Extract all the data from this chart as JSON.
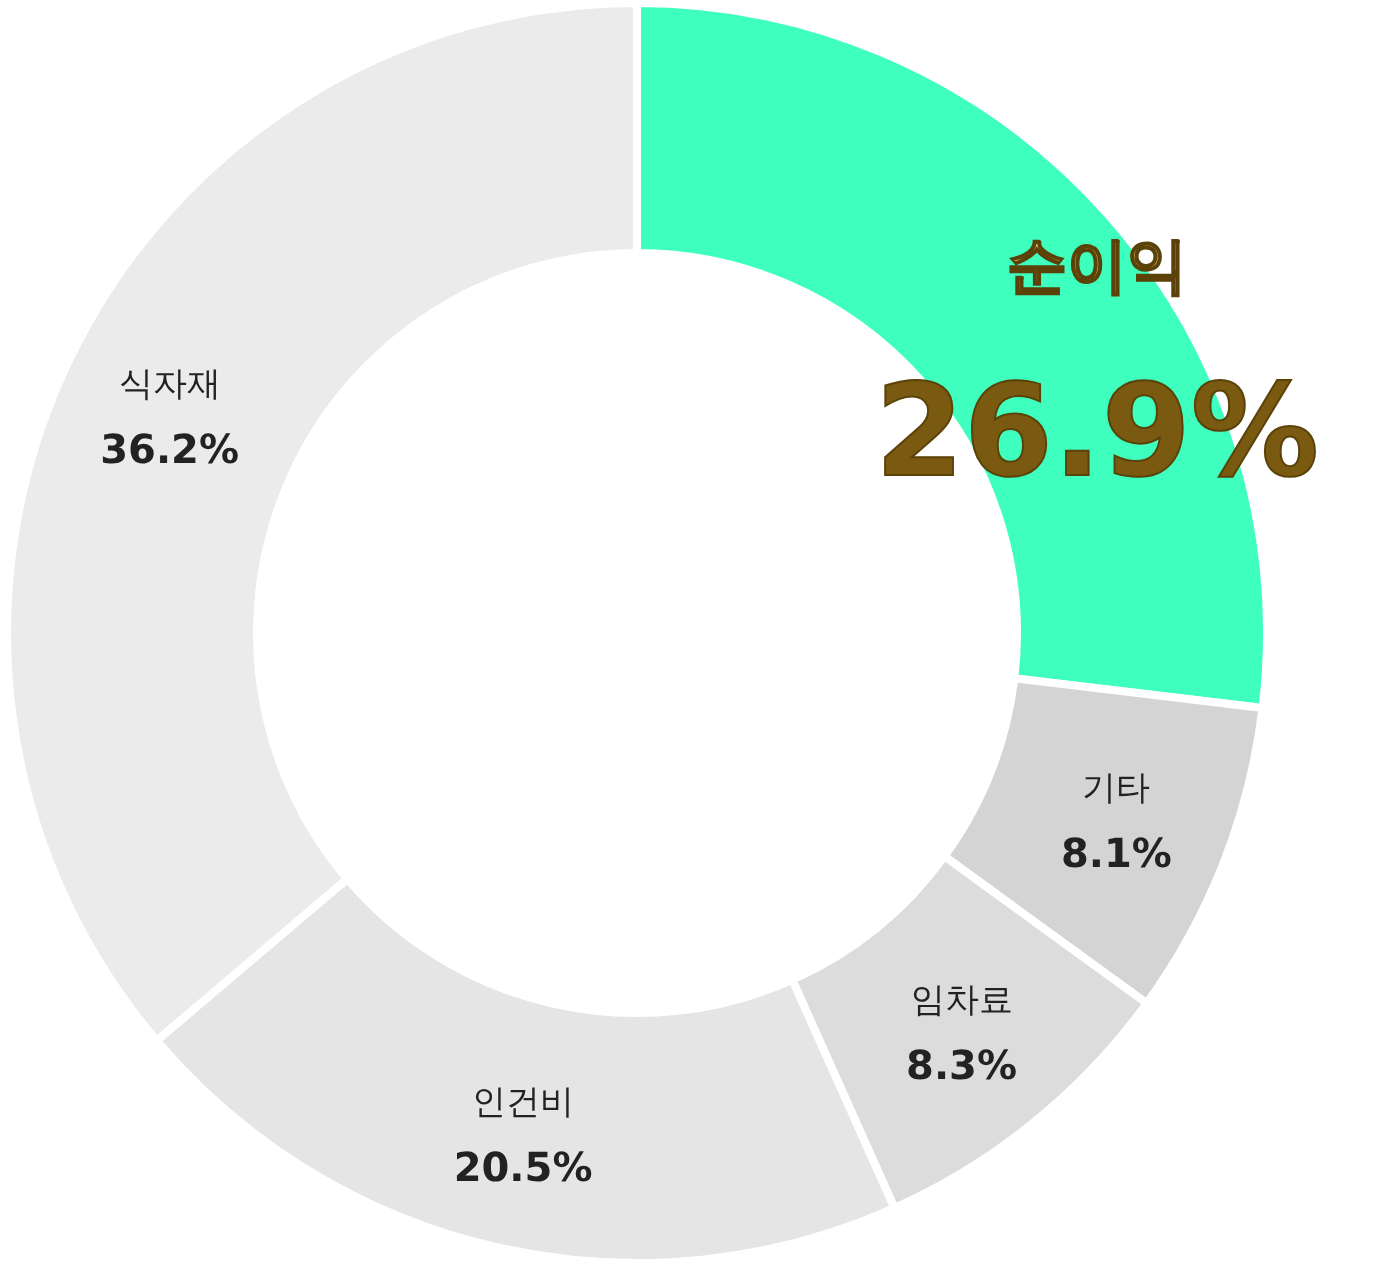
{
  "chart_data": {
    "type": "donut",
    "categories": [
      "순이익",
      "기타",
      "임차료",
      "인건비",
      "식자재"
    ],
    "values": [
      26.9,
      8.1,
      8.3,
      20.5,
      36.2
    ],
    "colors": [
      "#3effbe",
      "#d4d4d4",
      "#dcdcdc",
      "#e5e5e5",
      "#ebebeb"
    ],
    "value_labels": [
      "26.9%",
      "8.1%",
      "8.3%",
      "20.5%",
      "36.2%"
    ]
  }
}
